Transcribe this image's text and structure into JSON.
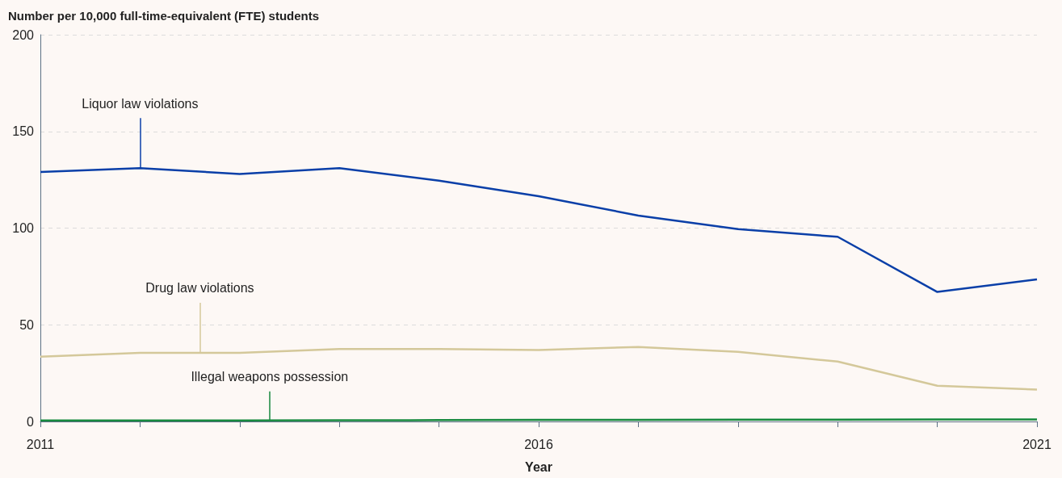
{
  "chart_data": {
    "type": "line",
    "ylabel": "Number per 10,000 full-time-equivalent (FTE) students",
    "xlabel": "Year",
    "x": [
      2011,
      2012,
      2013,
      2014,
      2015,
      2016,
      2017,
      2018,
      2019,
      2020,
      2021
    ],
    "series": [
      {
        "name": "Liquor law violations",
        "color": "#0a3fa8",
        "values": [
          129,
          131,
          128,
          131,
          124.5,
          116.5,
          106.5,
          99.5,
          95.5,
          67,
          73.5
        ]
      },
      {
        "name": "Drug law violations",
        "color": "#d4c89a",
        "values": [
          33.5,
          35.5,
          35.5,
          37.5,
          37.5,
          37,
          38.5,
          36,
          31,
          18.5,
          16.5
        ]
      },
      {
        "name": "Illegal weapons possession",
        "color": "#16893e",
        "values": [
          0.5,
          0.5,
          0.5,
          0.6,
          0.7,
          0.8,
          0.8,
          0.9,
          0.9,
          1,
          1
        ]
      }
    ],
    "xlim": [
      2011,
      2021
    ],
    "xticks": [
      2011,
      {
        "value": 2012,
        "label": null
      },
      {
        "value": 2013,
        "label": null
      },
      {
        "value": 2014,
        "label": null
      },
      {
        "value": 2015,
        "label": null
      },
      2016,
      {
        "value": 2017,
        "label": null
      },
      {
        "value": 2018,
        "label": null
      },
      {
        "value": 2019,
        "label": null
      },
      {
        "value": 2020,
        "label": null
      },
      2021
    ],
    "ylim": [
      0,
      200
    ],
    "yticks": [
      0,
      50,
      100,
      150,
      200
    ],
    "grid": "y",
    "legend": false,
    "marker": "none",
    "line_style": "solid"
  }
}
